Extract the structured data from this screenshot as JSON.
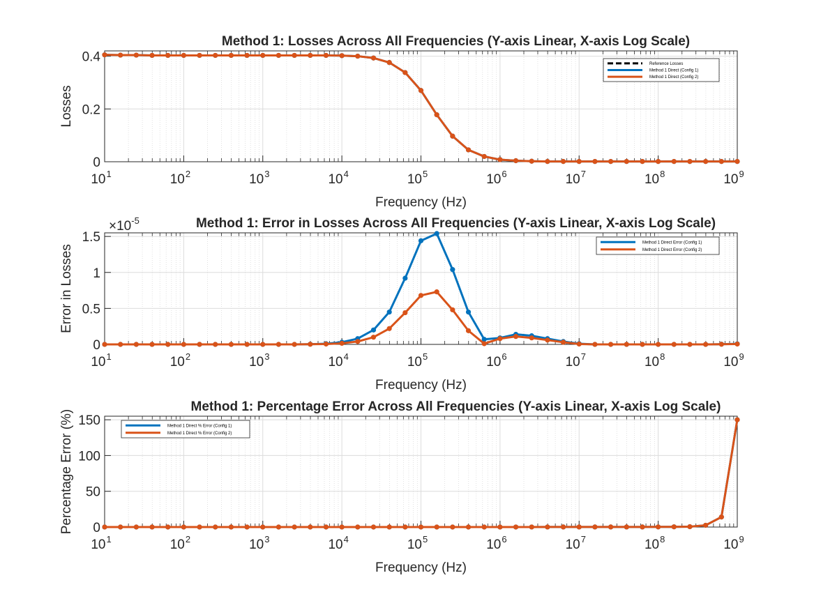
{
  "figure": {
    "background": "#ffffff",
    "axes_background": "#ffffff"
  },
  "colors": {
    "config1": "#0072BD",
    "config2": "#D95319",
    "reference": "#000000",
    "grid": "#dcdcdc",
    "axis": "#262626"
  },
  "chart_data": [
    {
      "type": "line",
      "title": "Method 1: Losses Across All Frequencies (Y-axis Linear, X-axis Log Scale)",
      "xlabel": "Frequency (Hz)",
      "ylabel": "Losses",
      "xscale": "log",
      "xlim": [
        10,
        1000000000
      ],
      "ylim": [
        0,
        0.42
      ],
      "xtick_exponents": [
        "1",
        "2",
        "3",
        "4",
        "5",
        "6",
        "7",
        "8",
        "9"
      ],
      "ytick_values": [
        0,
        0.2,
        0.4
      ],
      "ytick_labels": [
        "0",
        "0.2",
        "0.4"
      ],
      "grid": true,
      "legend_location": "top-right",
      "x": [
        10,
        15.85,
        25.12,
        39.81,
        63.1,
        100,
        158.5,
        251.2,
        398.1,
        631,
        1000,
        1585,
        2512,
        3981,
        6310,
        10000,
        15850,
        25120,
        39810,
        63100,
        100000,
        158500,
        251200,
        398100,
        631000,
        1000000,
        1585000,
        2512000,
        3981000,
        6310000,
        10000000,
        15850000,
        25120000,
        39810000,
        63100000,
        100000000,
        158500000,
        251200000,
        398100000,
        631000000,
        1000000000
      ],
      "series": [
        {
          "name": "Reference Losses",
          "style": "dashed",
          "values": [
            0.405,
            0.404,
            0.404,
            0.403,
            0.403,
            0.403,
            0.403,
            0.403,
            0.403,
            0.403,
            0.403,
            0.403,
            0.403,
            0.403,
            0.403,
            0.402,
            0.4,
            0.393,
            0.376,
            0.338,
            0.27,
            0.178,
            0.097,
            0.045,
            0.02,
            0.008,
            0.004,
            0.002,
            0.001,
            0.001,
            0.001,
            0.001,
            0.001,
            0.001,
            0.001,
            0.001,
            0.001,
            0.001,
            0.001,
            0.001,
            0.001
          ]
        },
        {
          "name": "Method 1 Direct (Config 1)",
          "style": "solid",
          "values": [
            0.405,
            0.404,
            0.404,
            0.403,
            0.403,
            0.403,
            0.403,
            0.403,
            0.403,
            0.403,
            0.403,
            0.403,
            0.403,
            0.403,
            0.403,
            0.402,
            0.4,
            0.393,
            0.376,
            0.338,
            0.27,
            0.178,
            0.097,
            0.045,
            0.02,
            0.008,
            0.004,
            0.002,
            0.001,
            0.001,
            0.001,
            0.001,
            0.001,
            0.001,
            0.001,
            0.001,
            0.001,
            0.001,
            0.001,
            0.001,
            0.001
          ]
        },
        {
          "name": "Method 1 Direct (Config 2)",
          "style": "solid",
          "values": [
            0.405,
            0.404,
            0.404,
            0.403,
            0.403,
            0.403,
            0.403,
            0.403,
            0.403,
            0.403,
            0.403,
            0.403,
            0.403,
            0.403,
            0.403,
            0.402,
            0.4,
            0.393,
            0.376,
            0.338,
            0.27,
            0.178,
            0.097,
            0.045,
            0.02,
            0.008,
            0.004,
            0.002,
            0.001,
            0.001,
            0.001,
            0.001,
            0.001,
            0.001,
            0.001,
            0.001,
            0.001,
            0.001,
            0.001,
            0.001,
            0.001
          ]
        }
      ]
    },
    {
      "type": "line",
      "title": "Method 1: Error in Losses Across All Frequencies (Y-axis Linear, X-axis Log Scale)",
      "xlabel": "Frequency (Hz)",
      "ylabel": "Error in Losses",
      "y_multiplier": "×10",
      "y_exponent": "-5",
      "xscale": "log",
      "xlim": [
        10,
        1000000000
      ],
      "ylim": [
        0,
        1.55
      ],
      "xtick_exponents": [
        "1",
        "2",
        "3",
        "4",
        "5",
        "6",
        "7",
        "8",
        "9"
      ],
      "ytick_values": [
        0,
        0.5,
        1,
        1.5
      ],
      "ytick_labels": [
        "0",
        "0.5",
        "1",
        "1.5"
      ],
      "grid": true,
      "legend_location": "top-right",
      "x": [
        10,
        15.85,
        25.12,
        39.81,
        63.1,
        100,
        158.5,
        251.2,
        398.1,
        631,
        1000,
        1585,
        2512,
        3981,
        6310,
        10000,
        15850,
        25120,
        39810,
        63100,
        100000,
        158500,
        251200,
        398100,
        631000,
        1000000,
        1585000,
        2512000,
        3981000,
        6310000,
        10000000,
        15850000,
        25120000,
        39810000,
        63100000,
        100000000,
        158500000,
        251200000,
        398100000,
        631000000,
        1000000000
      ],
      "series": [
        {
          "name": "Method 1 Direct Error (Config 1)",
          "values": [
            0,
            0,
            0,
            0,
            0,
            0,
            0,
            0,
            0,
            0,
            0,
            0,
            0,
            0.003,
            0.01,
            0.03,
            0.08,
            0.2,
            0.45,
            0.92,
            1.44,
            1.54,
            1.04,
            0.45,
            0.07,
            0.09,
            0.14,
            0.12,
            0.08,
            0.04,
            0.01,
            0,
            0,
            0,
            0,
            0,
            0,
            0,
            0,
            0.003,
            0.008
          ]
        },
        {
          "name": "Method 1 Direct Error (Config 2)",
          "values": [
            0,
            0,
            0,
            0,
            0,
            0,
            0,
            0,
            0,
            0,
            0,
            0,
            0,
            0.002,
            0.005,
            0.015,
            0.04,
            0.1,
            0.22,
            0.44,
            0.68,
            0.73,
            0.48,
            0.19,
            0.01,
            0.08,
            0.11,
            0.09,
            0.06,
            0.03,
            0.005,
            0,
            0,
            0,
            0,
            0,
            0,
            0,
            0,
            0.002,
            0.005
          ]
        }
      ]
    },
    {
      "type": "line",
      "title": "Method 1: Percentage Error Across All Frequencies (Y-axis Linear, X-axis Log Scale)",
      "xlabel": "Frequency (Hz)",
      "ylabel": "Percentage Error (%)",
      "xscale": "log",
      "xlim": [
        10,
        1000000000
      ],
      "ylim": [
        0,
        155
      ],
      "xtick_exponents": [
        "1",
        "2",
        "3",
        "4",
        "5",
        "6",
        "7",
        "8",
        "9"
      ],
      "ytick_values": [
        0,
        50,
        100,
        150
      ],
      "ytick_labels": [
        "0",
        "50",
        "100",
        "150"
      ],
      "grid": true,
      "legend_location": "top-left",
      "x": [
        10,
        15.85,
        25.12,
        39.81,
        63.1,
        100,
        158.5,
        251.2,
        398.1,
        631,
        1000,
        1585,
        2512,
        3981,
        6310,
        10000,
        15850,
        25120,
        39810,
        63100,
        100000,
        158500,
        251200,
        398100,
        631000,
        1000000,
        1585000,
        2512000,
        3981000,
        6310000,
        10000000,
        15850000,
        25120000,
        39810000,
        63100000,
        100000000,
        158500000,
        251200000,
        398100000,
        631000000,
        1000000000
      ],
      "series": [
        {
          "name": "Method 1 Direct % Error (Config 1)",
          "values": [
            0,
            0,
            0,
            0,
            0,
            0,
            0,
            0,
            0,
            0,
            0,
            0,
            0,
            0,
            0,
            0,
            0,
            0,
            0,
            0,
            0.01,
            0.01,
            0.01,
            0.01,
            0,
            0.01,
            0.03,
            0.06,
            0.08,
            0.1,
            0.1,
            0.1,
            0.1,
            0.1,
            0.1,
            0.2,
            0.3,
            0.5,
            2.5,
            14,
            150
          ]
        },
        {
          "name": "Method 1 Direct % Error (Config 2)",
          "values": [
            0,
            0,
            0,
            0,
            0,
            0,
            0,
            0,
            0,
            0,
            0,
            0,
            0,
            0,
            0,
            0,
            0,
            0,
            0,
            0,
            0,
            0,
            0,
            0,
            0,
            0.01,
            0.02,
            0.05,
            0.07,
            0.09,
            0.1,
            0.1,
            0.1,
            0.1,
            0.1,
            0.2,
            0.3,
            0.5,
            2.5,
            14,
            150
          ]
        }
      ]
    }
  ]
}
